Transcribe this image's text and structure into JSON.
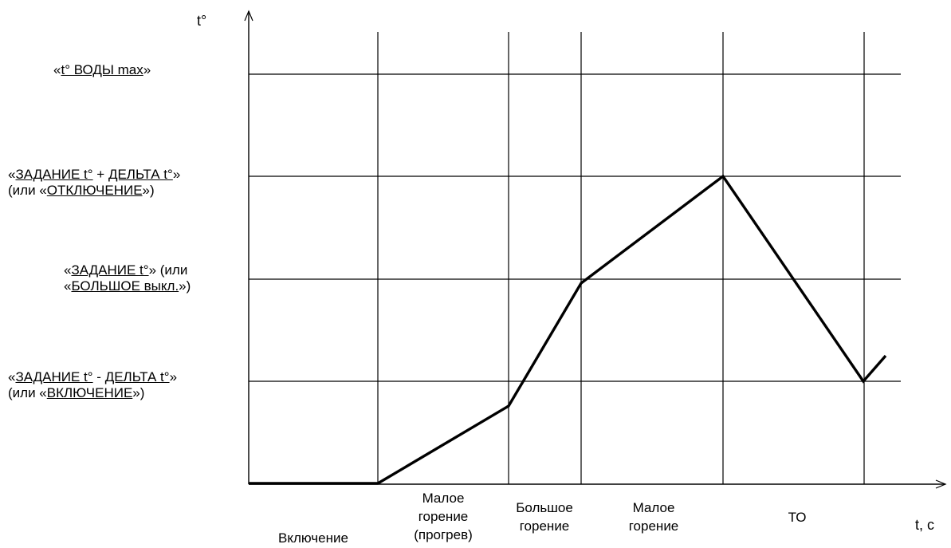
{
  "axes": {
    "y_label": "t°",
    "x_label": "t, с"
  },
  "levels": {
    "water_max": {
      "q1": "«",
      "u1": "t° ВОДЫ max",
      "q2": "»"
    },
    "upper": {
      "line1": {
        "q1": "«",
        "u1": "ЗАДАНИЕ t°",
        "mid": " + ",
        "u2": "ДЕЛЬТА t°",
        "q2": "»"
      },
      "line2": {
        "pre": "(или «",
        "u1": "ОТКЛЮЧЕНИЕ",
        "post": "»)"
      }
    },
    "setpoint": {
      "line1": {
        "q1": "«",
        "u1": "ЗАДАНИЕ t°",
        "post": "»  (или"
      },
      "line2": {
        "q1": "«",
        "u1": "БОЛЬШОЕ выкл.",
        "post": "»)"
      }
    },
    "lower": {
      "line1": {
        "q1": "«",
        "u1": "ЗАДАНИЕ t°",
        "mid": " - ",
        "u2": "ДЕЛЬТА t°",
        "q2": "»"
      },
      "line2": {
        "pre": "(или «",
        "u1": "ВКЛЮЧЕНИЕ",
        "post": "»)"
      }
    }
  },
  "phases": [
    "Включение",
    "Малое\nгорение\n(прогрев)",
    "Большое\nгорение",
    "Малое\nгорение",
    "ТО"
  ],
  "colors": {
    "line": "#000000",
    "background": "#ffffff"
  }
}
